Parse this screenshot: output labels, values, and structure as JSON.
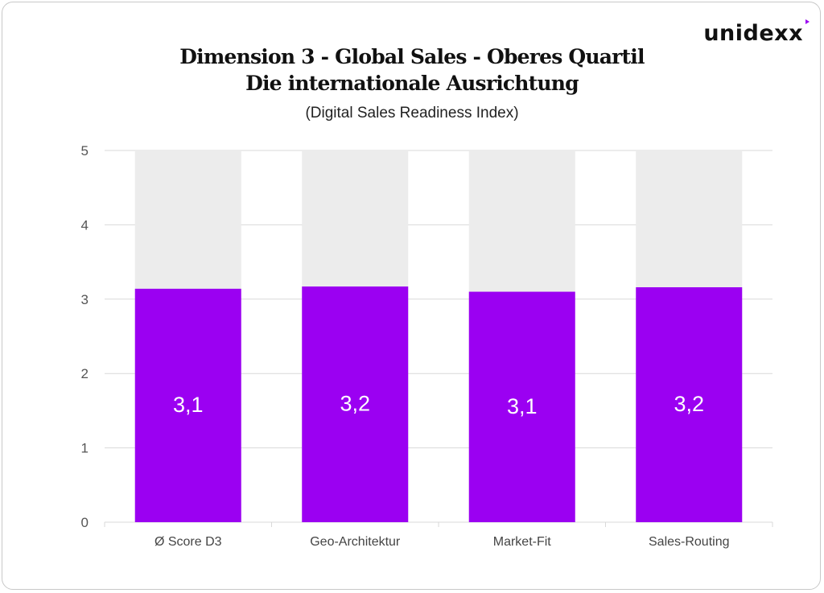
{
  "brand": {
    "logo_text": "unidexx",
    "accent_color": "#9b00f2"
  },
  "header": {
    "title_line1": "Dimension 3 - Global Sales - Oberes Quartil",
    "title_line2": "Die internationale Ausrichtung",
    "subtitle": "(Digital Sales Readiness Index)"
  },
  "chart_data": {
    "type": "bar",
    "stacked_background": true,
    "categories": [
      "Ø Score D3",
      "Geo-Architektur",
      "Market-Fit",
      "Sales-Routing"
    ],
    "series": [
      {
        "values": [
          3.14,
          3.17,
          3.1,
          3.16
        ],
        "color": "#9b00f2"
      }
    ],
    "max_value": 5,
    "background_bar_color": "#ececec",
    "data_labels": [
      "3,1",
      "3,2",
      "3,1",
      "3,2"
    ],
    "ylim": [
      0,
      5
    ],
    "yticks": [
      "0",
      "1",
      "2",
      "3",
      "4",
      "5"
    ],
    "grid": true,
    "legend": "none",
    "xlabel": "",
    "ylabel": ""
  }
}
